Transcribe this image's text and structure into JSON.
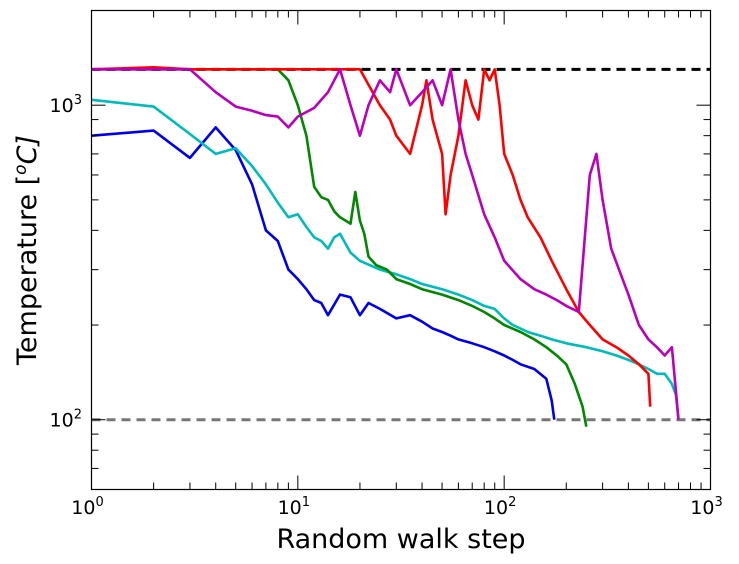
{
  "chart_data": {
    "type": "line",
    "title": "",
    "xlabel": "Random walk step",
    "ylabel_text": "Temperature [",
    "ylabel_sup": "o",
    "ylabel_unit": "C]",
    "xscale": "log",
    "yscale": "log",
    "xlim": [
      1,
      1000
    ],
    "ylim": [
      60,
      2000
    ],
    "grid": false,
    "legend": "none",
    "x_ticks": [
      {
        "base": "10",
        "exp": "0",
        "value": 1
      },
      {
        "base": "10",
        "exp": "1",
        "value": 10
      },
      {
        "base": "10",
        "exp": "2",
        "value": 100
      },
      {
        "base": "10",
        "exp": "3",
        "value": 1000
      }
    ],
    "y_ticks": [
      {
        "base": "10",
        "exp": "2",
        "value": 100
      },
      {
        "base": "10",
        "exp": "3",
        "value": 1000
      }
    ],
    "reference_lines": [
      {
        "y": 1300,
        "color": "#000000",
        "style": "dashed"
      },
      {
        "y": 100,
        "color": "#777777",
        "style": "dashed"
      }
    ],
    "series": [
      {
        "color": "#0000ee",
        "points": [
          [
            1,
            800
          ],
          [
            2,
            830
          ],
          [
            3,
            680
          ],
          [
            4,
            850
          ],
          [
            5,
            720
          ],
          [
            6,
            560
          ],
          [
            7,
            400
          ],
          [
            8,
            370
          ],
          [
            9,
            300
          ],
          [
            10,
            280
          ],
          [
            11,
            260
          ],
          [
            12,
            240
          ],
          [
            13,
            235
          ],
          [
            14,
            215
          ],
          [
            16,
            250
          ],
          [
            18,
            245
          ],
          [
            20,
            215
          ],
          [
            22,
            235
          ],
          [
            25,
            225
          ],
          [
            30,
            210
          ],
          [
            35,
            215
          ],
          [
            40,
            205
          ],
          [
            45,
            195
          ],
          [
            50,
            190
          ],
          [
            55,
            185
          ],
          [
            60,
            180
          ],
          [
            70,
            175
          ],
          [
            80,
            170
          ],
          [
            90,
            165
          ],
          [
            100,
            160
          ],
          [
            110,
            155
          ],
          [
            120,
            150
          ],
          [
            140,
            145
          ],
          [
            160,
            135
          ],
          [
            170,
            115
          ],
          [
            175,
            100
          ]
        ]
      },
      {
        "color": "#00bbbb",
        "points": [
          [
            1,
            1040
          ],
          [
            2,
            990
          ],
          [
            3,
            810
          ],
          [
            4,
            700
          ],
          [
            5,
            730
          ],
          [
            6,
            640
          ],
          [
            7,
            560
          ],
          [
            8,
            490
          ],
          [
            9,
            440
          ],
          [
            10,
            450
          ],
          [
            11,
            410
          ],
          [
            12,
            380
          ],
          [
            13,
            370
          ],
          [
            14,
            350
          ],
          [
            15,
            380
          ],
          [
            16,
            390
          ],
          [
            18,
            340
          ],
          [
            20,
            320
          ],
          [
            25,
            300
          ],
          [
            30,
            290
          ],
          [
            35,
            280
          ],
          [
            40,
            270
          ],
          [
            50,
            260
          ],
          [
            60,
            250
          ],
          [
            70,
            240
          ],
          [
            80,
            230
          ],
          [
            90,
            225
          ],
          [
            100,
            210
          ],
          [
            110,
            200
          ],
          [
            120,
            195
          ],
          [
            130,
            190
          ],
          [
            150,
            185
          ],
          [
            170,
            180
          ],
          [
            200,
            175
          ],
          [
            250,
            170
          ],
          [
            300,
            165
          ],
          [
            350,
            160
          ],
          [
            400,
            155
          ],
          [
            450,
            150
          ],
          [
            500,
            145
          ],
          [
            550,
            140
          ],
          [
            600,
            140
          ],
          [
            650,
            130
          ],
          [
            680,
            120
          ],
          [
            700,
            100
          ]
        ]
      },
      {
        "color": "#008800",
        "points": [
          [
            1,
            1300
          ],
          [
            3,
            1300
          ],
          [
            5,
            1300
          ],
          [
            8,
            1300
          ],
          [
            9,
            1200
          ],
          [
            10,
            1000
          ],
          [
            11,
            800
          ],
          [
            12,
            550
          ],
          [
            13,
            510
          ],
          [
            14,
            500
          ],
          [
            15,
            460
          ],
          [
            16,
            440
          ],
          [
            17,
            430
          ],
          [
            18,
            420
          ],
          [
            19,
            530
          ],
          [
            20,
            430
          ],
          [
            21,
            390
          ],
          [
            22,
            330
          ],
          [
            24,
            310
          ],
          [
            27,
            300
          ],
          [
            30,
            280
          ],
          [
            35,
            270
          ],
          [
            40,
            260
          ],
          [
            50,
            250
          ],
          [
            60,
            240
          ],
          [
            70,
            230
          ],
          [
            80,
            220
          ],
          [
            90,
            210
          ],
          [
            100,
            200
          ],
          [
            120,
            190
          ],
          [
            140,
            180
          ],
          [
            160,
            170
          ],
          [
            180,
            160
          ],
          [
            200,
            150
          ],
          [
            220,
            130
          ],
          [
            240,
            110
          ],
          [
            250,
            95
          ]
        ]
      },
      {
        "color": "#ff0000",
        "points": [
          [
            1,
            1300
          ],
          [
            2,
            1320
          ],
          [
            3,
            1300
          ],
          [
            5,
            1300
          ],
          [
            8,
            1300
          ],
          [
            12,
            1300
          ],
          [
            15,
            1300
          ],
          [
            20,
            1300
          ],
          [
            25,
            1000
          ],
          [
            28,
            900
          ],
          [
            30,
            800
          ],
          [
            35,
            700
          ],
          [
            40,
            1000
          ],
          [
            42,
            1200
          ],
          [
            45,
            900
          ],
          [
            50,
            700
          ],
          [
            52,
            450
          ],
          [
            55,
            600
          ],
          [
            60,
            800
          ],
          [
            65,
            1200
          ],
          [
            70,
            1000
          ],
          [
            75,
            900
          ],
          [
            80,
            1300
          ],
          [
            85,
            1200
          ],
          [
            90,
            1300
          ],
          [
            95,
            1000
          ],
          [
            100,
            700
          ],
          [
            110,
            600
          ],
          [
            120,
            500
          ],
          [
            130,
            440
          ],
          [
            150,
            380
          ],
          [
            170,
            320
          ],
          [
            200,
            260
          ],
          [
            230,
            220
          ],
          [
            260,
            200
          ],
          [
            300,
            180
          ],
          [
            350,
            170
          ],
          [
            400,
            160
          ],
          [
            450,
            150
          ],
          [
            500,
            140
          ],
          [
            510,
            110
          ]
        ]
      },
      {
        "color": "#bb00bb",
        "points": [
          [
            1,
            1300
          ],
          [
            3,
            1300
          ],
          [
            4,
            1100
          ],
          [
            5,
            990
          ],
          [
            6,
            960
          ],
          [
            7,
            930
          ],
          [
            8,
            920
          ],
          [
            9,
            850
          ],
          [
            10,
            920
          ],
          [
            12,
            980
          ],
          [
            14,
            1100
          ],
          [
            16,
            1300
          ],
          [
            18,
            1000
          ],
          [
            20,
            800
          ],
          [
            22,
            1000
          ],
          [
            25,
            1200
          ],
          [
            28,
            1100
          ],
          [
            30,
            1300
          ],
          [
            35,
            1000
          ],
          [
            40,
            1100
          ],
          [
            45,
            1200
          ],
          [
            50,
            1000
          ],
          [
            55,
            1300
          ],
          [
            60,
            900
          ],
          [
            65,
            700
          ],
          [
            70,
            600
          ],
          [
            80,
            450
          ],
          [
            90,
            380
          ],
          [
            100,
            320
          ],
          [
            120,
            280
          ],
          [
            140,
            260
          ],
          [
            160,
            250
          ],
          [
            180,
            240
          ],
          [
            200,
            230
          ],
          [
            230,
            220
          ],
          [
            260,
            600
          ],
          [
            280,
            700
          ],
          [
            300,
            500
          ],
          [
            330,
            350
          ],
          [
            360,
            300
          ],
          [
            400,
            250
          ],
          [
            450,
            200
          ],
          [
            500,
            180
          ],
          [
            550,
            170
          ],
          [
            600,
            160
          ],
          [
            650,
            170
          ],
          [
            700,
            100
          ]
        ]
      }
    ]
  }
}
